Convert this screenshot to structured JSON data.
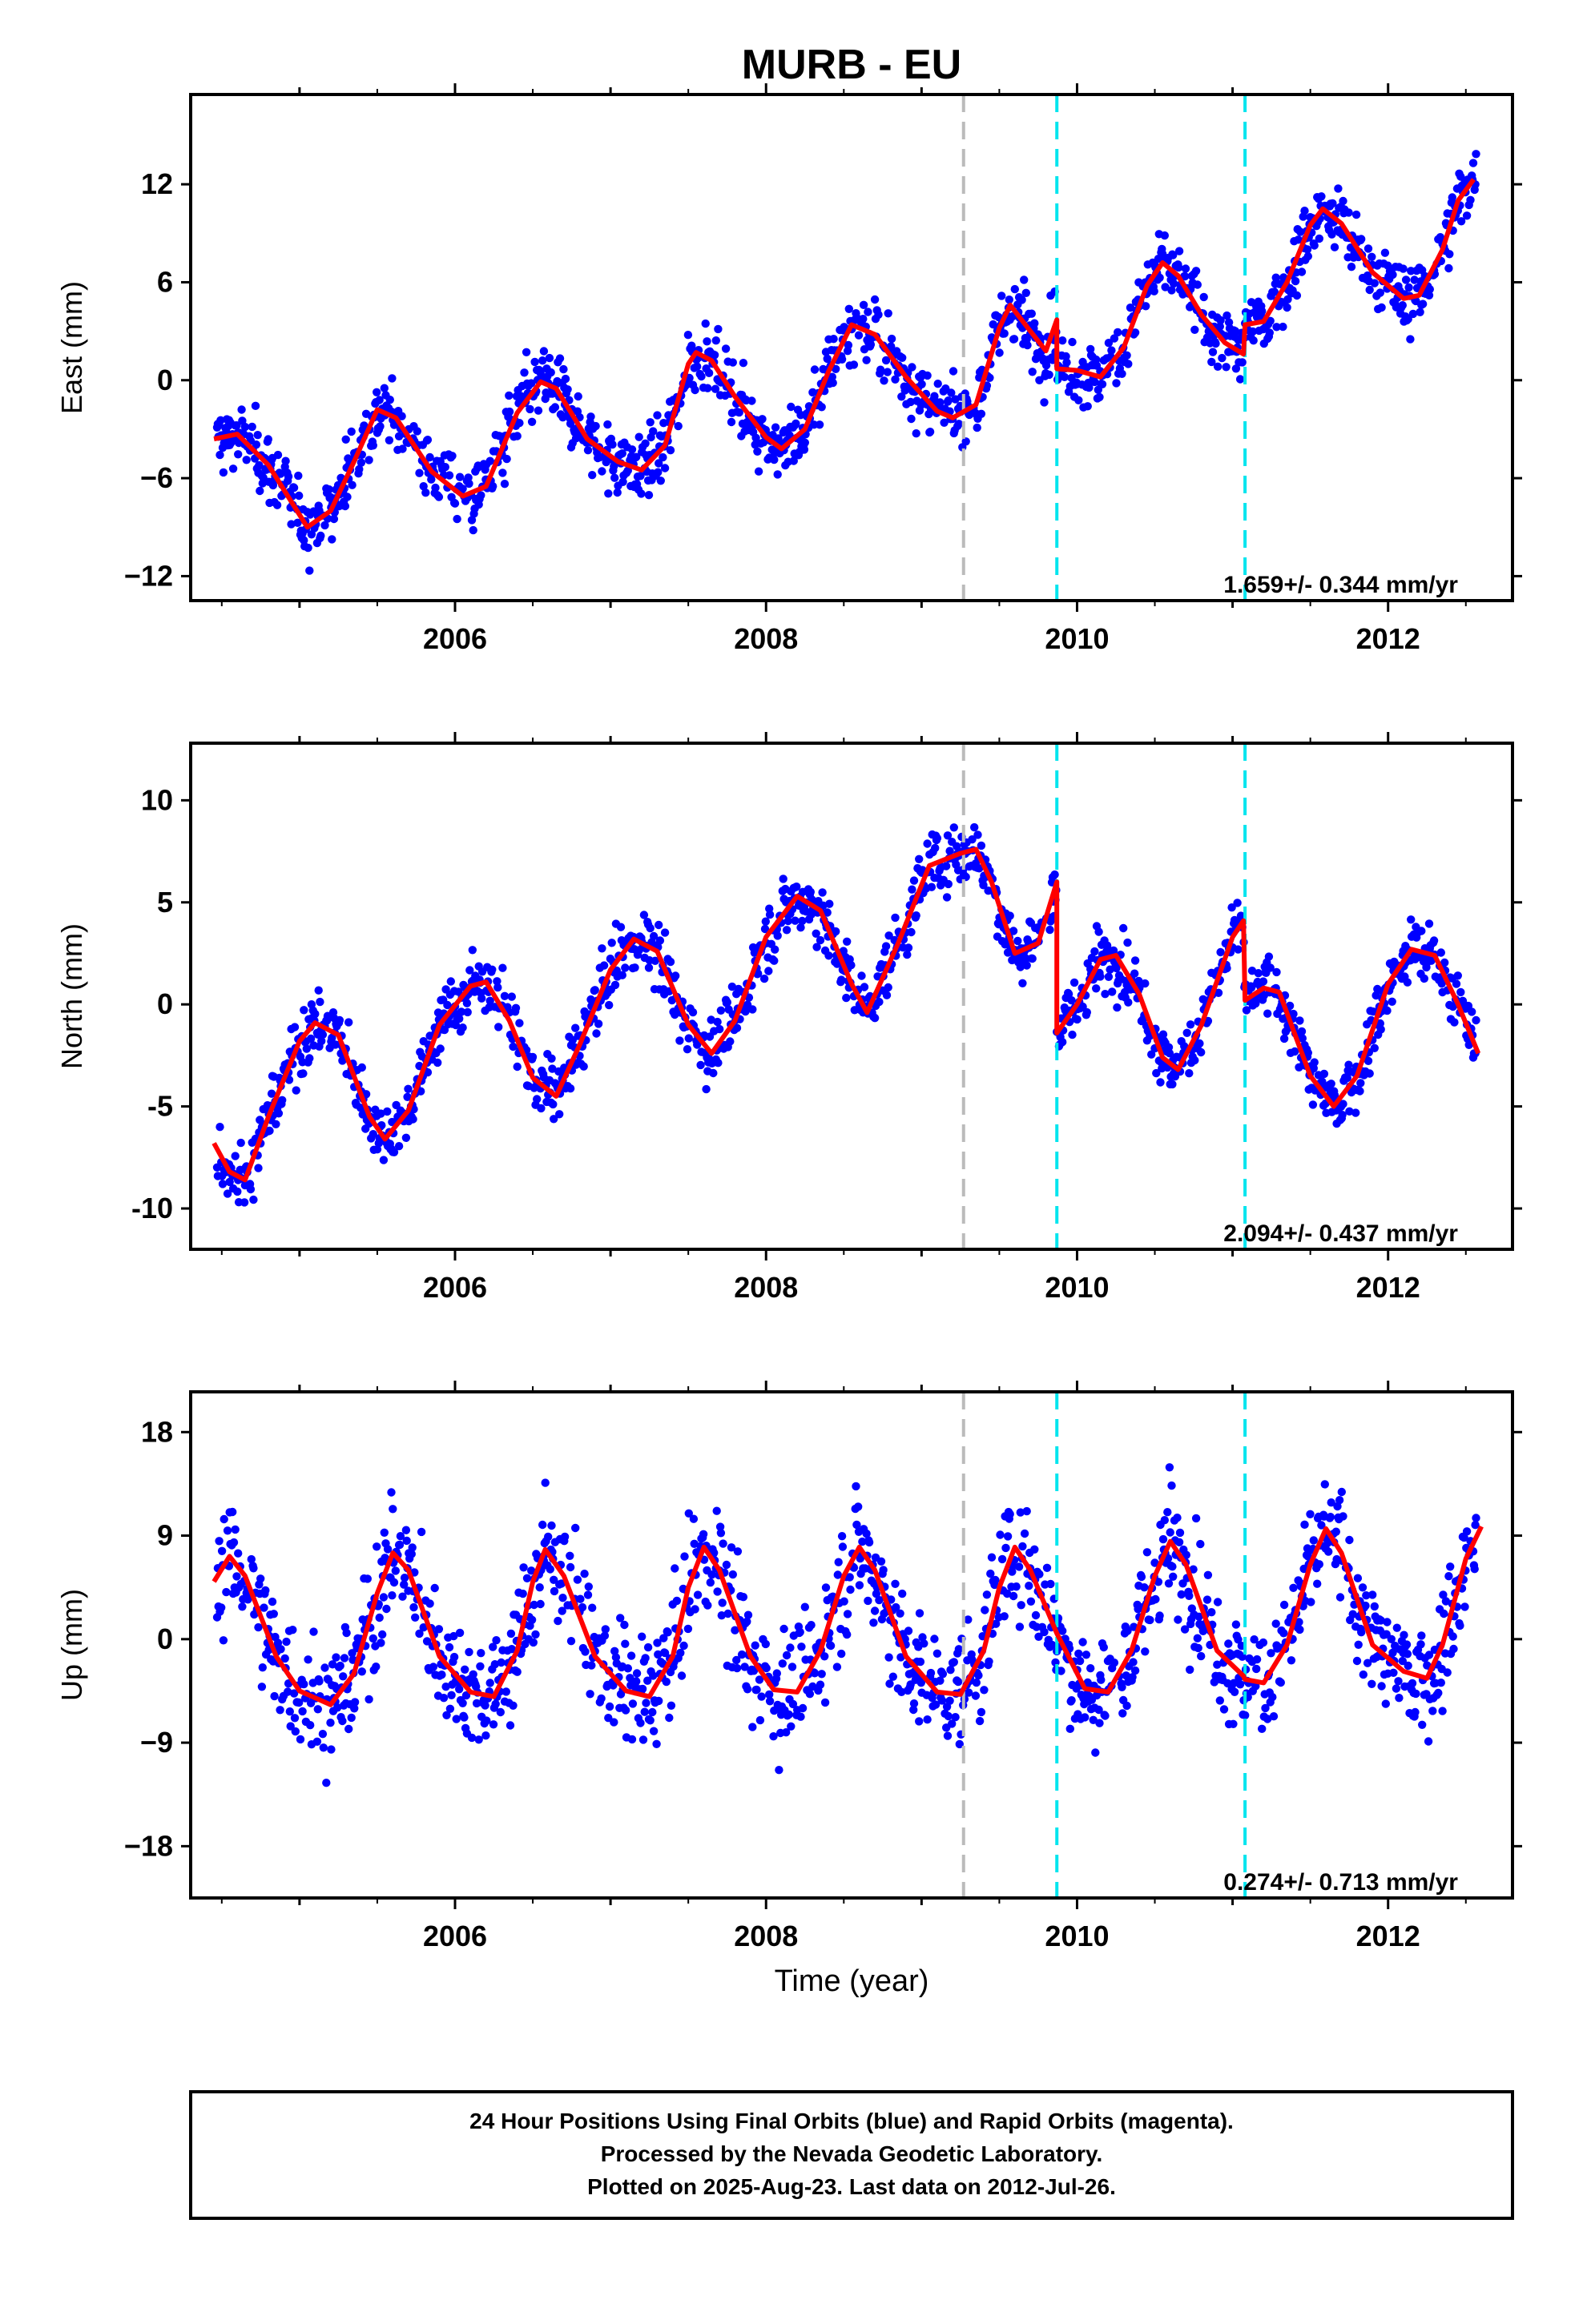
{
  "chart_data": {
    "type": "scatter",
    "title": "MURB - EU",
    "xlabel": "Time (year)",
    "xlim": [
      2004.3,
      2012.8
    ],
    "x_ticks": [
      "2006",
      "2008",
      "2010",
      "2012"
    ],
    "colors": {
      "data": "#0000ff",
      "model": "#ff0000",
      "gray_line": "#bbbbbb",
      "cyan_line": "#00e5ee"
    },
    "vertical_lines": [
      {
        "x": 2009.27,
        "color": "gray"
      },
      {
        "x": 2009.87,
        "color": "cyan"
      },
      {
        "x": 2011.08,
        "color": "cyan"
      }
    ],
    "panels": [
      {
        "ylabel": "East (mm)",
        "ylim": [
          -13.5,
          17.5
        ],
        "y_ticks": [
          "12",
          "6",
          "0",
          "−6",
          "−12"
        ],
        "rate": "1.659+/- 0.344 mm/yr",
        "model_knots": [
          [
            2004.45,
            -3.6
          ],
          [
            2004.6,
            -3.3
          ],
          [
            2004.8,
            -5.2
          ],
          [
            2005.05,
            -9.0
          ],
          [
            2005.2,
            -8.0
          ],
          [
            2005.35,
            -5.0
          ],
          [
            2005.5,
            -1.8
          ],
          [
            2005.62,
            -2.3
          ],
          [
            2005.85,
            -5.6
          ],
          [
            2006.05,
            -7.1
          ],
          [
            2006.2,
            -6.5
          ],
          [
            2006.4,
            -2.0
          ],
          [
            2006.55,
            -0.1
          ],
          [
            2006.65,
            -0.5
          ],
          [
            2006.85,
            -3.6
          ],
          [
            2007.05,
            -5.0
          ],
          [
            2007.2,
            -5.5
          ],
          [
            2007.35,
            -4.0
          ],
          [
            2007.5,
            1.0
          ],
          [
            2007.55,
            1.7
          ],
          [
            2007.65,
            1.2
          ],
          [
            2007.8,
            -1.0
          ],
          [
            2008.0,
            -3.5
          ],
          [
            2008.1,
            -4.2
          ],
          [
            2008.25,
            -3.0
          ],
          [
            2008.4,
            0.5
          ],
          [
            2008.55,
            3.4
          ],
          [
            2008.7,
            2.8
          ],
          [
            2008.9,
            0.2
          ],
          [
            2009.1,
            -1.9
          ],
          [
            2009.2,
            -2.3
          ],
          [
            2009.35,
            -1.5
          ],
          [
            2009.5,
            3.2
          ],
          [
            2009.57,
            4.6
          ],
          [
            2009.7,
            3.0
          ],
          [
            2009.8,
            1.8
          ],
          [
            2009.87,
            3.7
          ],
          [
            2009.87,
            0.7
          ],
          [
            2010.0,
            0.6
          ],
          [
            2010.15,
            0.2
          ],
          [
            2010.3,
            2.0
          ],
          [
            2010.45,
            5.8
          ],
          [
            2010.55,
            7.2
          ],
          [
            2010.65,
            6.4
          ],
          [
            2010.8,
            4.0
          ],
          [
            2010.95,
            2.3
          ],
          [
            2011.07,
            1.6
          ],
          [
            2011.08,
            3.4
          ],
          [
            2011.2,
            3.6
          ],
          [
            2011.35,
            6.0
          ],
          [
            2011.5,
            9.5
          ],
          [
            2011.58,
            10.5
          ],
          [
            2011.7,
            9.6
          ],
          [
            2011.9,
            6.6
          ],
          [
            2012.1,
            5.0
          ],
          [
            2012.2,
            5.2
          ],
          [
            2012.35,
            8.0
          ],
          [
            2012.45,
            11.0
          ],
          [
            2012.55,
            12.3
          ]
        ],
        "scatter_noise": 1.6
      },
      {
        "ylabel": "North (mm)",
        "ylim": [
          -12.0,
          12.8
        ],
        "y_ticks": [
          "10",
          "5",
          "0",
          "-5",
          "-10"
        ],
        "rate": "2.094+/- 0.437 mm/yr",
        "model_knots": [
          [
            2004.45,
            -6.8
          ],
          [
            2004.55,
            -8.2
          ],
          [
            2004.65,
            -8.6
          ],
          [
            2004.8,
            -5.5
          ],
          [
            2005.0,
            -1.8
          ],
          [
            2005.1,
            -0.9
          ],
          [
            2005.25,
            -1.5
          ],
          [
            2005.45,
            -5.5
          ],
          [
            2005.55,
            -6.6
          ],
          [
            2005.7,
            -5.2
          ],
          [
            2005.9,
            -1.0
          ],
          [
            2006.1,
            0.9
          ],
          [
            2006.2,
            1.1
          ],
          [
            2006.35,
            -0.8
          ],
          [
            2006.5,
            -3.6
          ],
          [
            2006.65,
            -4.5
          ],
          [
            2006.8,
            -2.0
          ],
          [
            2007.0,
            1.7
          ],
          [
            2007.15,
            3.2
          ],
          [
            2007.3,
            2.6
          ],
          [
            2007.5,
            -1.0
          ],
          [
            2007.65,
            -2.4
          ],
          [
            2007.8,
            -0.8
          ],
          [
            2008.0,
            3.3
          ],
          [
            2008.2,
            5.3
          ],
          [
            2008.35,
            4.6
          ],
          [
            2008.55,
            1.0
          ],
          [
            2008.65,
            -0.4
          ],
          [
            2008.85,
            3.0
          ],
          [
            2009.05,
            6.8
          ],
          [
            2009.25,
            7.4
          ],
          [
            2009.35,
            7.6
          ],
          [
            2009.45,
            6.0
          ],
          [
            2009.6,
            2.5
          ],
          [
            2009.75,
            3.0
          ],
          [
            2009.87,
            6.0
          ],
          [
            2009.87,
            -1.4
          ],
          [
            2010.0,
            0.0
          ],
          [
            2010.15,
            2.2
          ],
          [
            2010.25,
            2.4
          ],
          [
            2010.4,
            0.5
          ],
          [
            2010.55,
            -2.6
          ],
          [
            2010.65,
            -3.2
          ],
          [
            2010.8,
            -1.0
          ],
          [
            2011.0,
            3.3
          ],
          [
            2011.07,
            4.1
          ],
          [
            2011.08,
            0.2
          ],
          [
            2011.2,
            0.8
          ],
          [
            2011.3,
            0.6
          ],
          [
            2011.5,
            -3.5
          ],
          [
            2011.65,
            -5.0
          ],
          [
            2011.8,
            -3.5
          ],
          [
            2012.0,
            1.0
          ],
          [
            2012.15,
            2.7
          ],
          [
            2012.3,
            2.4
          ],
          [
            2012.45,
            0.0
          ],
          [
            2012.58,
            -2.4
          ]
        ],
        "scatter_noise": 1.2
      },
      {
        "ylabel": "Up (mm)",
        "ylim": [
          -22.5,
          21.5
        ],
        "y_ticks": [
          "18",
          "9",
          "0",
          "−9",
          "−18"
        ],
        "rate": "0.274+/- 0.713 mm/yr",
        "model_knots": [
          [
            2004.45,
            5.0
          ],
          [
            2004.55,
            7.2
          ],
          [
            2004.65,
            5.5
          ],
          [
            2004.85,
            -1.5
          ],
          [
            2005.0,
            -4.5
          ],
          [
            2005.2,
            -5.7
          ],
          [
            2005.35,
            -3.0
          ],
          [
            2005.5,
            4.0
          ],
          [
            2005.6,
            7.5
          ],
          [
            2005.7,
            6.0
          ],
          [
            2005.9,
            -1.5
          ],
          [
            2006.1,
            -4.6
          ],
          [
            2006.25,
            -5.0
          ],
          [
            2006.4,
            -1.0
          ],
          [
            2006.5,
            5.0
          ],
          [
            2006.58,
            7.8
          ],
          [
            2006.7,
            5.5
          ],
          [
            2006.9,
            -1.5
          ],
          [
            2007.1,
            -4.5
          ],
          [
            2007.25,
            -5.0
          ],
          [
            2007.4,
            -1.5
          ],
          [
            2007.5,
            4.5
          ],
          [
            2007.6,
            8.0
          ],
          [
            2007.7,
            6.0
          ],
          [
            2007.9,
            -1.5
          ],
          [
            2008.05,
            -4.4
          ],
          [
            2008.2,
            -4.6
          ],
          [
            2008.35,
            -1.0
          ],
          [
            2008.5,
            5.5
          ],
          [
            2008.6,
            8.0
          ],
          [
            2008.7,
            6.0
          ],
          [
            2008.9,
            -1.5
          ],
          [
            2009.1,
            -4.6
          ],
          [
            2009.25,
            -4.8
          ],
          [
            2009.4,
            -1.0
          ],
          [
            2009.5,
            4.5
          ],
          [
            2009.6,
            8.0
          ],
          [
            2009.7,
            6.0
          ],
          [
            2009.87,
            0.5
          ],
          [
            2010.05,
            -4.3
          ],
          [
            2010.2,
            -4.6
          ],
          [
            2010.35,
            -1.0
          ],
          [
            2010.5,
            5.5
          ],
          [
            2010.6,
            8.5
          ],
          [
            2010.7,
            6.5
          ],
          [
            2010.9,
            -1.0
          ],
          [
            2011.07,
            -3.2
          ],
          [
            2011.08,
            -3.5
          ],
          [
            2011.2,
            -3.8
          ],
          [
            2011.35,
            -0.5
          ],
          [
            2011.5,
            6.5
          ],
          [
            2011.6,
            9.6
          ],
          [
            2011.7,
            7.5
          ],
          [
            2011.9,
            -0.5
          ],
          [
            2012.1,
            -2.8
          ],
          [
            2012.25,
            -3.4
          ],
          [
            2012.35,
            -0.5
          ],
          [
            2012.5,
            7.0
          ],
          [
            2012.6,
            9.8
          ]
        ],
        "scatter_noise": 4.0
      }
    ],
    "footer": [
      "24 Hour Positions Using Final Orbits (blue) and Rapid Orbits (magenta).",
      "Processed by the Nevada Geodetic Laboratory.",
      "Plotted on 2025-Aug-23. Last data on 2012-Jul-26."
    ]
  }
}
